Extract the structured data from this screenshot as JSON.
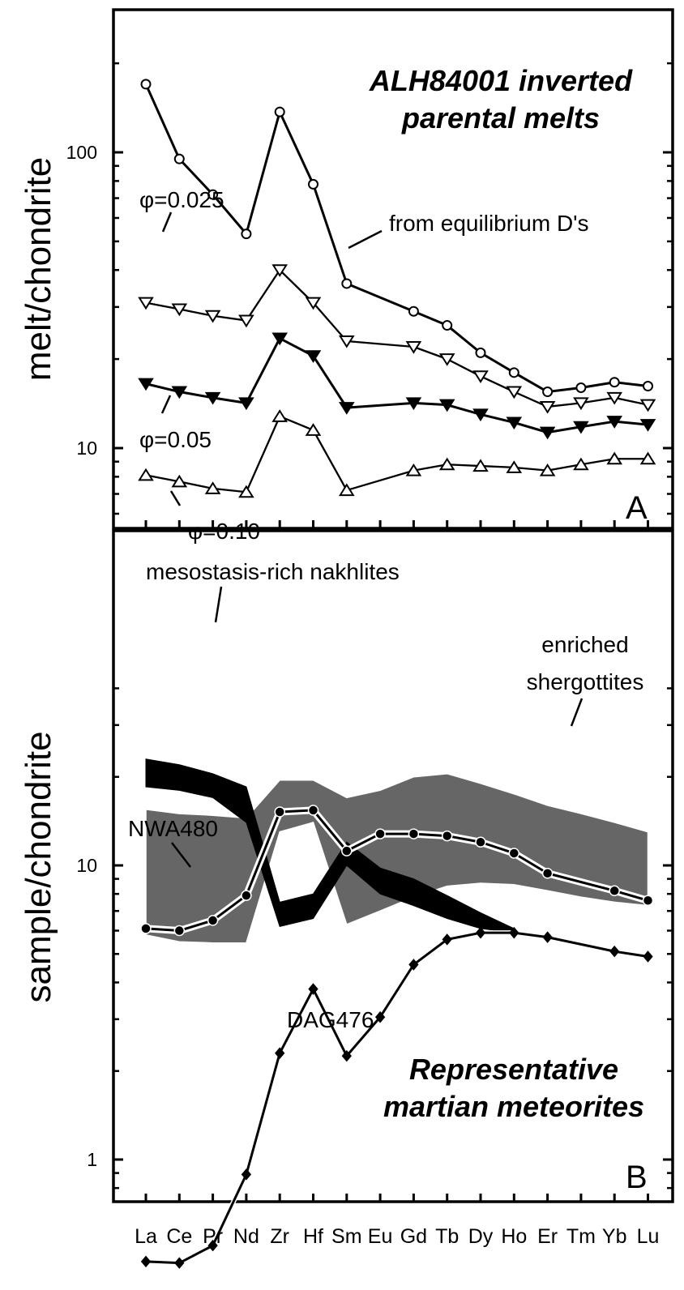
{
  "chart_data": [
    {
      "panel": "A",
      "type": "line",
      "title": "ALH84001 inverted parental melts",
      "ylabel": "melt/chondrite",
      "yscale": "log",
      "ylim": [
        3.6,
        270
      ],
      "ytick_labels": [
        "10",
        "100"
      ],
      "categories": [
        "La",
        "Ce",
        "Pr",
        "Nd",
        "Zr",
        "Hf",
        "Sm",
        "Eu",
        "Gd",
        "Tb",
        "Dy",
        "Ho",
        "Er",
        "Tm",
        "Yb",
        "Lu"
      ],
      "series": [
        {
          "name": "from equilibrium D's",
          "marker": "open-circle",
          "values": [
            170,
            95,
            72,
            53,
            137,
            78,
            36,
            null,
            29,
            26,
            21,
            18,
            15.5,
            16,
            16.7,
            16.2
          ]
        },
        {
          "name": "φ=0.025",
          "marker": "open-triangle-down",
          "values": [
            31,
            29.5,
            28,
            27,
            40,
            31,
            23,
            null,
            22,
            20,
            17.5,
            15.5,
            13.8,
            14.2,
            14.8,
            14
          ]
        },
        {
          "name": "φ=0.05",
          "marker": "filled-triangle-down",
          "values": [
            16.5,
            15.5,
            14.8,
            14.2,
            23.5,
            20.5,
            13.7,
            null,
            14.2,
            14,
            13,
            12.2,
            11.3,
            11.8,
            12.3,
            12
          ]
        },
        {
          "name": "φ=0.10",
          "marker": "open-triangle-up",
          "values": [
            8.1,
            7.7,
            7.3,
            7.1,
            12.8,
            11.5,
            7.2,
            null,
            8.4,
            8.8,
            8.7,
            8.6,
            8.4,
            8.8,
            9.2,
            9.2
          ]
        }
      ],
      "panel_label": "A"
    },
    {
      "panel": "B",
      "type": "line",
      "title": "Representative martian meteorites",
      "ylabel": "sample/chondrite",
      "yscale": "log",
      "ylim": [
        0.33,
        45
      ],
      "ytick_labels": [
        "1",
        "10"
      ],
      "categories": [
        "La",
        "Ce",
        "Pr",
        "Nd",
        "Zr",
        "Hf",
        "Sm",
        "Eu",
        "Gd",
        "Tb",
        "Dy",
        "Ho",
        "Er",
        "Tm",
        "Yb",
        "Lu"
      ],
      "series": [
        {
          "name": "NWA480",
          "marker": "filled-circle",
          "values": [
            6.1,
            6.0,
            6.5,
            7.9,
            15.2,
            15.4,
            11.2,
            12.8,
            12.8,
            12.6,
            12.0,
            11.0,
            9.4,
            null,
            8.2,
            7.6
          ]
        },
        {
          "name": "DAG476",
          "marker": "filled-diamond",
          "values": [
            0.45,
            0.445,
            0.51,
            0.89,
            2.3,
            3.8,
            2.25,
            3.05,
            4.6,
            5.6,
            5.9,
            5.9,
            5.7,
            null,
            5.1,
            4.9
          ]
        }
      ],
      "bands": [
        {
          "name": "enriched shergottites",
          "upper": [
            15.5,
            15.0,
            14.8,
            14.5,
            19.5,
            19.5,
            17.0,
            18.0,
            20.0,
            20.5,
            19.0,
            17.5,
            16.0,
            15.0,
            14.0,
            13.0
          ],
          "lower": [
            5.8,
            5.5,
            5.45,
            5.45,
            13.0,
            14.0,
            6.3,
            7.0,
            7.8,
            8.5,
            8.7,
            8.6,
            8.2,
            7.8,
            7.5,
            7.3
          ]
        },
        {
          "name": "mesostasis-rich nakhlites",
          "upper": [
            23.0,
            22.0,
            20.5,
            18.5,
            7.5,
            8.0,
            12.0,
            9.8,
            9.0,
            7.9,
            6.9,
            6.1
          ],
          "lower": [
            18.5,
            18.0,
            17.0,
            14.0,
            6.2,
            6.6,
            10.0,
            8.0,
            7.3,
            6.6,
            6.1,
            5.9
          ]
        }
      ],
      "panel_label": "B"
    }
  ],
  "colors": {
    "band_gray": "#666666",
    "band_black": "#000000",
    "line": "#000000",
    "background": "#ffffff"
  }
}
